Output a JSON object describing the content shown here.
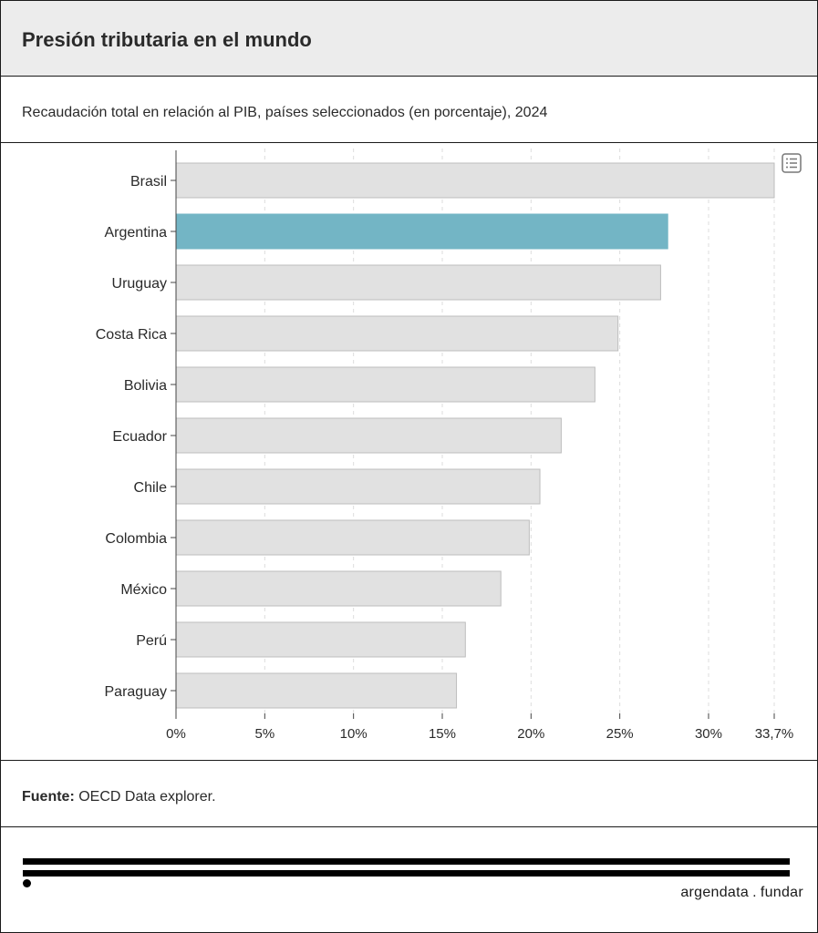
{
  "header": {
    "title": "Presión tributaria en el mundo"
  },
  "subtitle": "Recaudación total en relación al PIB, países seleccionados (en porcentaje), 2024",
  "source": {
    "label": "Fuente:",
    "text": " OECD Data explorer."
  },
  "logo": {
    "part1": "argendata",
    "sep": ".",
    "part2": "fundar"
  },
  "icons": {
    "table": "table-view-icon"
  },
  "colors": {
    "highlight": "#73b5c5",
    "bar": "#e1e1e1",
    "bar_stroke": "#bdbdbd",
    "grid": "#dddddd"
  },
  "chart_data": {
    "type": "bar",
    "orientation": "horizontal",
    "categories": [
      "Brasil",
      "Argentina",
      "Uruguay",
      "Costa Rica",
      "Bolivia",
      "Ecuador",
      "Chile",
      "Colombia",
      "México",
      "Perú",
      "Paraguay"
    ],
    "values": [
      33.7,
      27.7,
      27.3,
      24.9,
      23.6,
      21.7,
      20.5,
      19.9,
      18.3,
      16.3,
      15.8
    ],
    "highlight": "Argentina",
    "xlim": [
      0,
      33.7
    ],
    "xticks": [
      0,
      5,
      10,
      15,
      20,
      25,
      30,
      33.7
    ],
    "xtick_labels": [
      "0%",
      "5%",
      "10%",
      "15%",
      "20%",
      "25%",
      "30%",
      "33,7%"
    ],
    "grid": true
  }
}
